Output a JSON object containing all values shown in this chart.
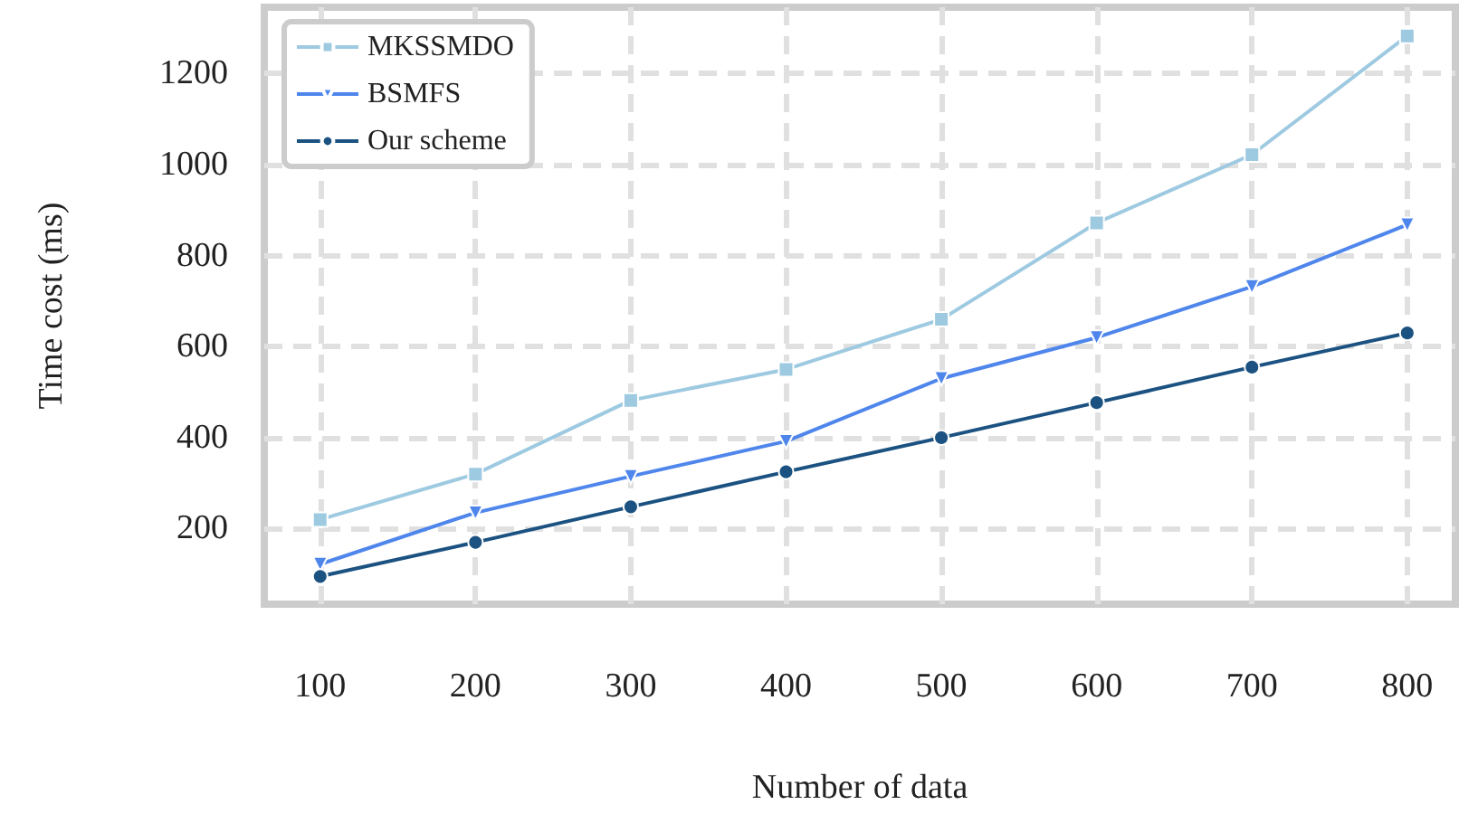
{
  "chart_data": {
    "type": "line",
    "xlabel": "Number of data",
    "ylabel": "Time cost (ms)",
    "x": [
      100,
      200,
      300,
      400,
      500,
      600,
      700,
      800
    ],
    "series": [
      {
        "name": "MKSSMDO",
        "color": "#9ecae1",
        "marker": "square",
        "values": [
          220,
          320,
          482,
          550,
          660,
          872,
          1022,
          1283
        ]
      },
      {
        "name": "BSMFS",
        "color": "#4f86ec",
        "marker": "triangle",
        "values": [
          122,
          235,
          315,
          392,
          530,
          620,
          732,
          868
        ]
      },
      {
        "name": "Our scheme",
        "color": "#1b5281",
        "marker": "circle",
        "values": [
          95,
          170,
          248,
          325,
          400,
          477,
          555,
          630
        ]
      }
    ],
    "xlim": [
      64,
      831
    ],
    "xticks": [
      100,
      200,
      300,
      400,
      500,
      600,
      700,
      800
    ],
    "ylim": [
      34,
      1346
    ],
    "yticks": [
      200,
      400,
      600,
      800,
      1000,
      1200
    ],
    "grid": true,
    "legend": "top left",
    "line_style": "solid"
  }
}
